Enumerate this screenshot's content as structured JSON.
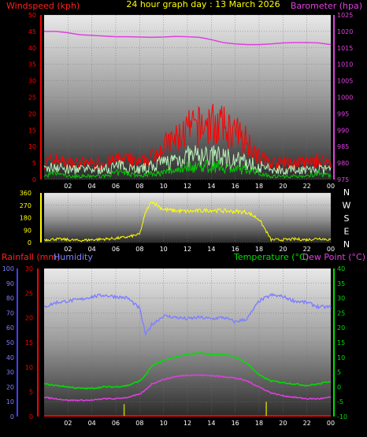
{
  "header": {
    "title": "24 hour graph day : 13 March 2026",
    "left_label": "Windspeed (kph)",
    "right_label": "Barometer (hpa)"
  },
  "bottom_header": {
    "rainfall_label": "Rainfall (mm)",
    "humidity_label": "Humidity",
    "temperature_label": "Temperature (°C)",
    "dewpoint_label": "Dew Point (°C)"
  },
  "colors": {
    "windspeed": "#ff0000",
    "gust": "#ff0000",
    "wind_avg": "#b8f0b8",
    "wind_low": "#00cc00",
    "barometer": "#e040e0",
    "wind_dir": "#ffff00",
    "temperature": "#00e000",
    "dewpoint": "#e040e0",
    "humidity": "#8080ff",
    "rainfall": "#ff0000",
    "rain_bar": "#c8c800",
    "axis_blue": "#4040ff"
  },
  "chart_data": [
    {
      "type": "line",
      "name": "wind_barometer",
      "title": "24 hour graph day : 13 March 2026",
      "x_ticks": [
        "02",
        "04",
        "06",
        "08",
        "10",
        "12",
        "14",
        "16",
        "18",
        "20",
        "22",
        "00"
      ],
      "ylabel_left": "Windspeed (kph)",
      "ylabel_right": "Barometer (hpa)",
      "ylim_left": [
        0,
        50
      ],
      "ylim_right": [
        975,
        1025
      ],
      "y_ticks_left": [
        "0",
        "5",
        "10",
        "15",
        "20",
        "25",
        "30",
        "35",
        "40",
        "45",
        "50"
      ],
      "y_ticks_right": [
        "975",
        "980",
        "985",
        "990",
        "995",
        "1000",
        "1005",
        "1010",
        "1015",
        "1020",
        "1025"
      ],
      "hours": [
        0,
        1,
        2,
        3,
        4,
        5,
        6,
        7,
        8,
        9,
        10,
        11,
        12,
        13,
        14,
        15,
        16,
        17,
        18,
        19,
        20,
        21,
        22,
        23,
        24
      ],
      "barometer": [
        1020,
        1020,
        1019.6,
        1019,
        1018.8,
        1018.6,
        1018.4,
        1018.4,
        1018.3,
        1018.2,
        1018.3,
        1018.5,
        1018.4,
        1018.2,
        1017.5,
        1016.6,
        1016.2,
        1016,
        1016,
        1016.2,
        1016.5,
        1016.6,
        1016.6,
        1016.5,
        1016
      ],
      "wind_gust": [
        5,
        6,
        5,
        5,
        5,
        5,
        6,
        6,
        5,
        7,
        10,
        12,
        15,
        16,
        17,
        16,
        14,
        12,
        7,
        5,
        5,
        5,
        5,
        6,
        5
      ],
      "wind_avg": [
        3,
        4,
        3,
        3,
        3,
        3,
        4,
        4,
        3,
        4,
        5,
        6,
        7,
        7,
        7,
        7,
        6,
        5,
        4,
        3,
        3,
        3,
        3,
        3,
        3
      ],
      "wind_low": [
        1,
        2,
        1,
        1,
        1,
        1,
        2,
        2,
        1,
        2,
        2,
        3,
        4,
        4,
        4,
        4,
        3,
        3,
        2,
        1,
        1,
        1,
        1,
        2,
        1
      ]
    },
    {
      "type": "line",
      "name": "wind_direction",
      "x_ticks": [
        "02",
        "04",
        "06",
        "08",
        "10",
        "12",
        "14",
        "16",
        "18",
        "20",
        "22",
        "00"
      ],
      "ylim": [
        0,
        360
      ],
      "y_ticks": [
        "0",
        "90",
        "180",
        "270",
        "360"
      ],
      "compass_labels": [
        "N",
        "W",
        "S",
        "E",
        "N"
      ],
      "hours": [
        0,
        1,
        2,
        3,
        4,
        5,
        6,
        7,
        8,
        8.5,
        9,
        10,
        11,
        12,
        13,
        14,
        15,
        16,
        17,
        18,
        19,
        20,
        21,
        22,
        23,
        24
      ],
      "direction": [
        20,
        25,
        20,
        15,
        20,
        25,
        30,
        40,
        60,
        220,
        300,
        240,
        230,
        225,
        230,
        235,
        230,
        225,
        220,
        170,
        20,
        20,
        25,
        20,
        30,
        20
      ]
    },
    {
      "type": "line",
      "name": "temperature_humidity_rain",
      "x_ticks": [
        "02",
        "04",
        "06",
        "08",
        "10",
        "12",
        "14",
        "16",
        "18",
        "20",
        "22",
        "00"
      ],
      "ylabel_humidity": "Humidity",
      "ylabel_rainfall": "Rainfall (mm)",
      "ylabel_temperature": "Temperature (°C)",
      "ylabel_dewpoint": "Dew Point (°C)",
      "ylim_humidity": [
        0,
        100
      ],
      "ylim_rainfall": [
        0,
        30
      ],
      "ylim_temperature": [
        -10,
        40
      ],
      "y_ticks_humidity": [
        "0",
        "10",
        "20",
        "30",
        "40",
        "50",
        "60",
        "70",
        "80",
        "90",
        "100"
      ],
      "y_ticks_rainfall": [
        "0",
        "5",
        "10",
        "15",
        "20",
        "25",
        "30"
      ],
      "y_ticks_temperature": [
        "-10",
        "-5",
        "0",
        "5",
        "10",
        "15",
        "20",
        "25",
        "30",
        "35",
        "40"
      ],
      "hours": [
        0,
        1,
        2,
        3,
        4,
        5,
        6,
        7,
        8,
        8.5,
        9,
        10,
        11,
        12,
        13,
        14,
        15,
        16,
        17,
        18,
        19,
        20,
        21,
        22,
        23,
        24
      ],
      "humidity": [
        74,
        77,
        78,
        79,
        81,
        82,
        81,
        80,
        73,
        55,
        62,
        68,
        67,
        66,
        67,
        66,
        67,
        64,
        66,
        78,
        82,
        81,
        78,
        77,
        74,
        74
      ],
      "temperature": [
        1,
        0.5,
        0,
        -0.5,
        -0.5,
        0,
        0,
        0.5,
        2,
        4,
        7,
        9,
        10,
        11,
        11.5,
        11,
        11,
        10,
        8,
        4,
        2,
        1.5,
        1,
        0.5,
        1,
        2
      ],
      "dewpoint": [
        -3.5,
        -4,
        -4.5,
        -4.5,
        -4.5,
        -4,
        -4,
        -3.5,
        -2.5,
        -1,
        1,
        2.5,
        3.5,
        4,
        4,
        3.8,
        3.5,
        3,
        2,
        0,
        -2,
        -3,
        -3.5,
        -4,
        -4,
        -3.5
      ],
      "rain_events": [
        {
          "hour": 6.7,
          "value": 2.5
        },
        {
          "hour": 18.6,
          "value": 3
        }
      ]
    }
  ]
}
